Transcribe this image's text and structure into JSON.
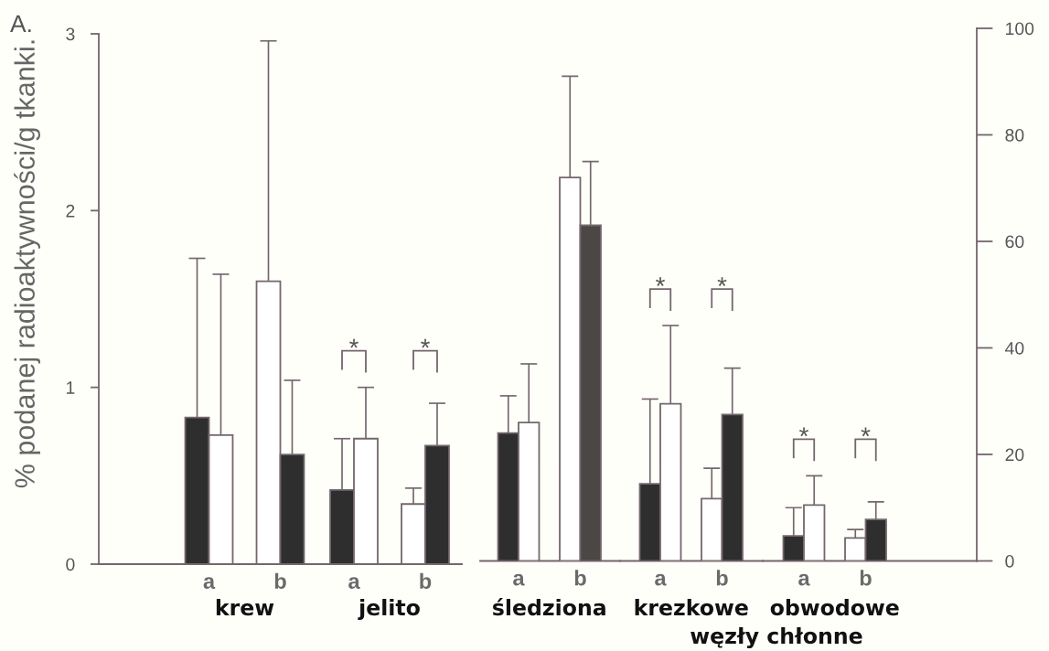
{
  "chart_data": [
    {
      "type": "bar",
      "title": "A.",
      "ylabel": "% podanej radioaktywności/g tkanki.",
      "xlabel": "krew",
      "categories": [
        "a",
        "b"
      ],
      "series": [
        {
          "colors": [
            "#2e2e2e",
            "#ffffff"
          ],
          "values": [
            0.83,
            1.6
          ],
          "errors": [
            [
              0.83,
              1.73
            ],
            [
              1.6,
              2.96
            ]
          ]
        },
        {
          "colors": [
            "#ffffff",
            "#2e2e2e"
          ],
          "values": [
            0.73,
            0.62
          ],
          "errors": [
            [
              0.73,
              1.64
            ],
            [
              0.62,
              1.04
            ]
          ]
        }
      ],
      "ylim": [
        0,
        3
      ],
      "yticks": [
        0,
        1,
        2,
        3
      ]
    },
    {
      "type": "bar",
      "xlabel": "jelito",
      "categories": [
        "a",
        "b"
      ],
      "series": [
        {
          "colors": [
            "#2e2e2e",
            "#ffffff"
          ],
          "values": [
            0.42,
            0.34
          ],
          "errors": [
            [
              0.42,
              0.71
            ],
            [
              0.34,
              0.43
            ]
          ]
        },
        {
          "colors": [
            "#ffffff",
            "#2e2e2e"
          ],
          "values": [
            0.71,
            0.67
          ],
          "errors": [
            [
              0.71,
              1.0
            ],
            [
              0.67,
              0.91
            ]
          ]
        }
      ],
      "annotations": [
        "*",
        "*"
      ],
      "ylim": [
        0,
        3
      ],
      "tick_labels": "x"
    },
    {
      "type": "bar",
      "xlabel": "śledziona",
      "categories": [
        "a",
        "b"
      ],
      "series": [
        {
          "axis": "y2",
          "colors": [
            "#2e2e2e",
            "#ffffff"
          ],
          "values": [
            24,
            72
          ],
          "errors": [
            [
              24,
              31
            ],
            [
              72,
              91
            ]
          ]
        },
        {
          "axis": "y2",
          "colors": [
            "#ffffff",
            "#4a4744"
          ],
          "values": [
            26,
            63
          ],
          "errors": [
            [
              26,
              37
            ],
            [
              63,
              75
            ]
          ]
        }
      ],
      "y2lim": [
        0,
        100
      ],
      "tick_labels": "x"
    },
    {
      "type": "bar",
      "xlabel": "krezkowe",
      "categories": [
        "a",
        "b"
      ],
      "series": [
        {
          "axis": "y2",
          "colors": [
            "#2e2e2e",
            "#ffffff"
          ],
          "values": [
            14.5,
            11.7
          ],
          "errors": [
            [
              14.5,
              30.4
            ],
            [
              11.7,
              17.4
            ]
          ]
        },
        {
          "axis": "y2",
          "colors": [
            "#ffffff",
            "#2e2e2e"
          ],
          "values": [
            29.5,
            27.5
          ],
          "errors": [
            [
              29.5,
              44.2
            ],
            [
              27.5,
              36.2
            ]
          ]
        }
      ],
      "annotations": [
        "*",
        "*",
        "węzły chłonne"
      ],
      "y2lim": [
        0,
        100
      ],
      "tick_labels": "x"
    },
    {
      "type": "bar",
      "xlabel": "obwodowe",
      "categories": [
        "a",
        "b"
      ],
      "series": [
        {
          "axis": "y2",
          "colors": [
            "#2e2e2e",
            "#ffffff"
          ],
          "values": [
            4.7,
            4.3
          ],
          "errors": [
            [
              4.7,
              10.0
            ],
            [
              4.3,
              5.9
            ]
          ]
        },
        {
          "axis": "y2",
          "colors": [
            "#ffffff",
            "#2e2e2e"
          ],
          "values": [
            10.5,
            7.8
          ],
          "errors": [
            [
              10.5,
              16.0
            ],
            [
              7.8,
              11.1
            ]
          ]
        }
      ],
      "annotations": [
        "*",
        "*"
      ],
      "y2lim": [
        0,
        100
      ],
      "y2ticks": [
        0,
        20,
        40,
        60,
        80,
        100
      ]
    }
  ]
}
